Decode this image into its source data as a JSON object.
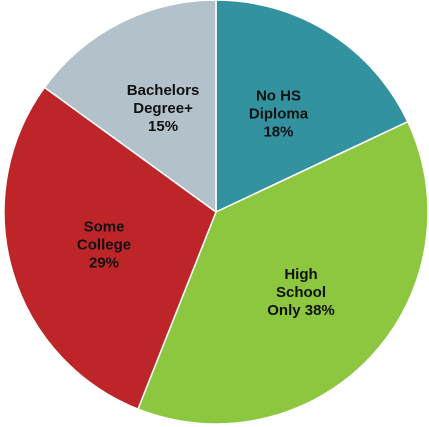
{
  "chart_data": {
    "type": "pie",
    "title": "",
    "slices": [
      {
        "label": "No HS Diploma",
        "value": 18,
        "display": [
          "No HS",
          "Diploma",
          "18%"
        ],
        "color": "#33929f"
      },
      {
        "label": "High School Only",
        "value": 38,
        "display": [
          "High",
          "School",
          "Only 38%"
        ],
        "color": "#8dc63f"
      },
      {
        "label": "Some College",
        "value": 29,
        "display": [
          "Some",
          "College",
          "29%"
        ],
        "color": "#be2529"
      },
      {
        "label": "Bachelors Degree+",
        "value": 15,
        "display": [
          "Bachelors",
          "Degree+",
          "15%"
        ],
        "color": "#b3c1ca"
      }
    ],
    "start_angle_deg": 0,
    "direction": "clockwise",
    "legend": "none",
    "slice_border_color": "#ffffff"
  }
}
